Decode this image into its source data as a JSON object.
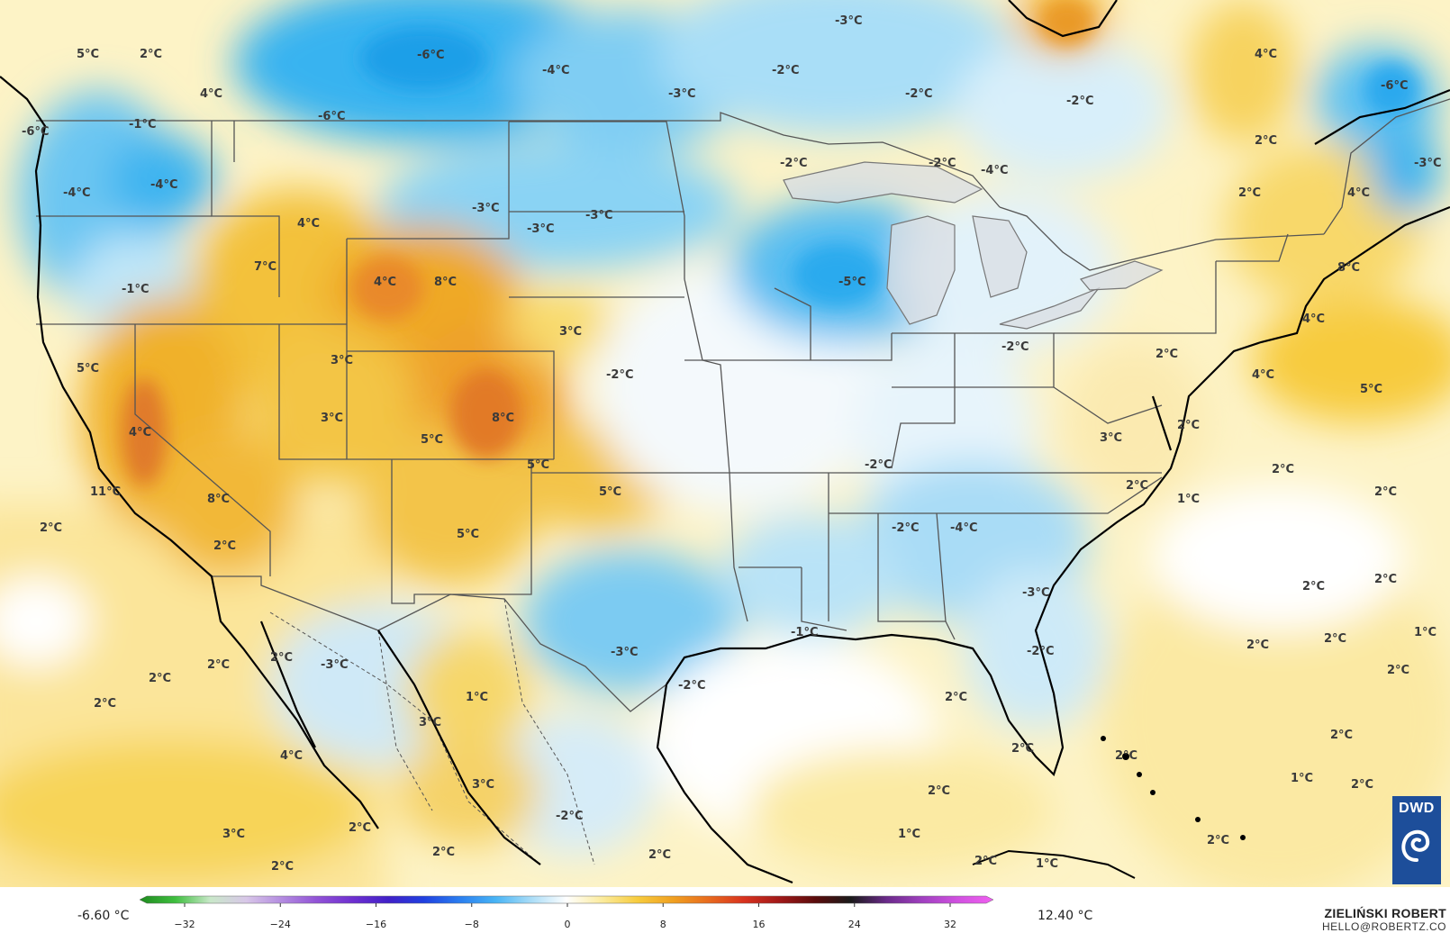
{
  "map": {
    "labels": [
      "5°C",
      "2°C",
      "4°C",
      "-6°C",
      "-4°C",
      "-3°C",
      "-2°C",
      "-2°C",
      "-3°C",
      "-2°C",
      "-6°C",
      "4°C",
      "-6°C",
      "-1°C",
      "-6°C",
      "-4°C",
      "-4°C",
      "4°C",
      "-3°C",
      "-3°C",
      "-3°C",
      "-2°C",
      "-2°C",
      "-4°C",
      "2°C",
      "2°C",
      "4°C",
      "-3°C",
      "7°C",
      "4°C",
      "8°C",
      "-1°C",
      "-5°C",
      "8°C",
      "3°C",
      "3°C",
      "-2°C",
      "5°C",
      "-2°C",
      "2°C",
      "4°C",
      "4°C",
      "5°C",
      "3°C",
      "4°C",
      "8°C",
      "5°C",
      "2°C",
      "3°C",
      "-2°C",
      "2°C",
      "5°C",
      "5°C",
      "11°C",
      "8°C",
      "-2°C",
      "-4°C",
      "1°C",
      "2°C",
      "5°C",
      "2°C",
      "2°C",
      "2°C",
      "-3°C",
      "2°C",
      "2°C",
      "-1°C",
      "2°C",
      "-3°C",
      "1°C",
      "2°C",
      "-2°C",
      "2°C",
      "2°C",
      "2°C",
      "2°C",
      "2°C",
      "-3°C",
      "-2°C",
      "2°C",
      "2°C",
      "1°C",
      "3°C",
      "2°C",
      "2°C",
      "4°C",
      "2°C",
      "1°C",
      "2°C",
      "-2°C",
      "3°C",
      "2°C",
      "2°C",
      "3°C",
      "2°C",
      "1°C",
      "2°C",
      "2°C",
      "1°C",
      "2°C"
    ],
    "colors": {
      "cold_strong": "#1ea7ec",
      "cold_mid": "#7fcdf3",
      "cold_light": "#c9e9f8",
      "neutral": "#f5f9fc",
      "warm_light": "#fbe9a2",
      "warm_mid": "#f7cf45",
      "warm_strong": "#f0ac22",
      "warm_peak": "#e07b2a",
      "border": "#555555",
      "coast": "#000000"
    }
  },
  "legend": {
    "min": "-6.60 °C",
    "max": "12.40 °C",
    "ticks": [
      "−32",
      "−24",
      "−16",
      "−8",
      "0",
      "8",
      "16",
      "24",
      "32"
    ],
    "colors": [
      "#1e8a1e",
      "#3fbf3f",
      "#c9e8c9",
      "#d8c7e8",
      "#b38be0",
      "#9152d6",
      "#6e2fd0",
      "#4020c8",
      "#2040e0",
      "#2a7ef0",
      "#48b4f5",
      "#a8dcf7",
      "#ffffff",
      "#fbeb9c",
      "#f7cc3e",
      "#f0a020",
      "#e86a1e",
      "#d8321e",
      "#a01818",
      "#5a0c0c",
      "#1a1a1a",
      "#6a2a8a",
      "#a040c0",
      "#d050e0",
      "#f060f0"
    ]
  },
  "credit": {
    "name": "ZIELIŃSKI ROBERT",
    "email": "HELLO@ROBERTZ.CO"
  },
  "logo": {
    "text": "DWD"
  }
}
